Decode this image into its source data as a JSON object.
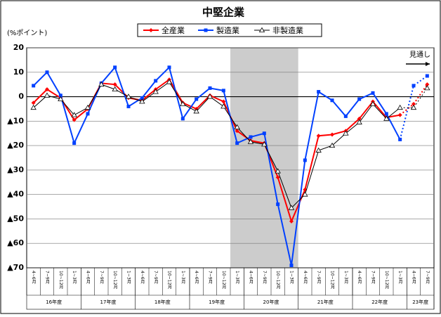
{
  "chart_data": {
    "type": "line",
    "title": "中堅企業",
    "y_label": "(%ポイント)",
    "annotation": "見通し",
    "categories": [
      "4~6月",
      "7~9月",
      "10~12月",
      "1~3月",
      "4~6月",
      "7~9月",
      "10~12月",
      "1~3月",
      "4~6月",
      "7~9月",
      "10~12月",
      "1~3月",
      "4~6月",
      "7~9月",
      "10~12月",
      "1~3月",
      "4~6月",
      "7~9月",
      "10~12月",
      "1~3月",
      "4~6月",
      "7~9月",
      "10~12月",
      "1~3月",
      "4~6月",
      "7~9月",
      "10~12月",
      "1~3月",
      "4~6月",
      "7~9月"
    ],
    "groups": [
      {
        "name": "16年度",
        "count": 4
      },
      {
        "name": "17年度",
        "count": 4
      },
      {
        "name": "18年度",
        "count": 4
      },
      {
        "name": "19年度",
        "count": 4
      },
      {
        "name": "20年度",
        "count": 4
      },
      {
        "name": "21年度",
        "count": 4
      },
      {
        "name": "22年度",
        "count": 4
      },
      {
        "name": "23年度",
        "count": 2
      }
    ],
    "shaded": [
      15,
      19
    ],
    "forecast_start": 28,
    "series": [
      {
        "name": "全産業",
        "color": "#ff0000",
        "marker": "diamond",
        "values": [
          -2.5,
          3,
          -0.5,
          -9.5,
          -5,
          5.5,
          5,
          -0.5,
          -1.5,
          3,
          7,
          -2.5,
          -5,
          0.5,
          -2,
          -14,
          -18,
          -19,
          -33,
          -51,
          -38,
          -16,
          -15.5,
          -14,
          -9,
          -2,
          -8.5,
          -7.5,
          -3,
          5
        ]
      },
      {
        "name": "製造業",
        "color": "#0040ff",
        "marker": "square",
        "values": [
          4.5,
          10,
          0.5,
          -19,
          -7,
          5.5,
          12,
          -4,
          -0.5,
          6.5,
          12,
          -9,
          -1,
          3.5,
          2.5,
          -19,
          -16.5,
          -15,
          -44,
          -69,
          -26,
          2,
          -1.5,
          -8,
          -1,
          1.5,
          -7,
          -17.5,
          4.5,
          8.5
        ]
      },
      {
        "name": "非製造業",
        "color": "#000000",
        "marker": "triangle",
        "values": [
          -4.5,
          0.5,
          -1,
          -7.5,
          -4.5,
          5,
          3,
          0,
          -2,
          2,
          6,
          -3,
          -6,
          0,
          -4,
          -12.5,
          -18.5,
          -19.5,
          -30.5,
          -45.5,
          -40,
          -22,
          -20,
          -15,
          -10.5,
          -3,
          -9,
          -4.5,
          -4.5,
          3.5
        ]
      }
    ],
    "ylim": [
      -70,
      20
    ],
    "yticks": [
      20,
      10,
      0,
      {
        "value": -10,
        "label": "▲10"
      },
      {
        "value": -20,
        "label": "▲20"
      },
      {
        "value": -30,
        "label": "▲30"
      },
      {
        "value": -40,
        "label": "▲40"
      },
      {
        "value": -50,
        "label": "▲50"
      },
      {
        "value": -60,
        "label": "▲60"
      },
      {
        "value": -70,
        "label": "▲70"
      }
    ],
    "grid": true
  }
}
